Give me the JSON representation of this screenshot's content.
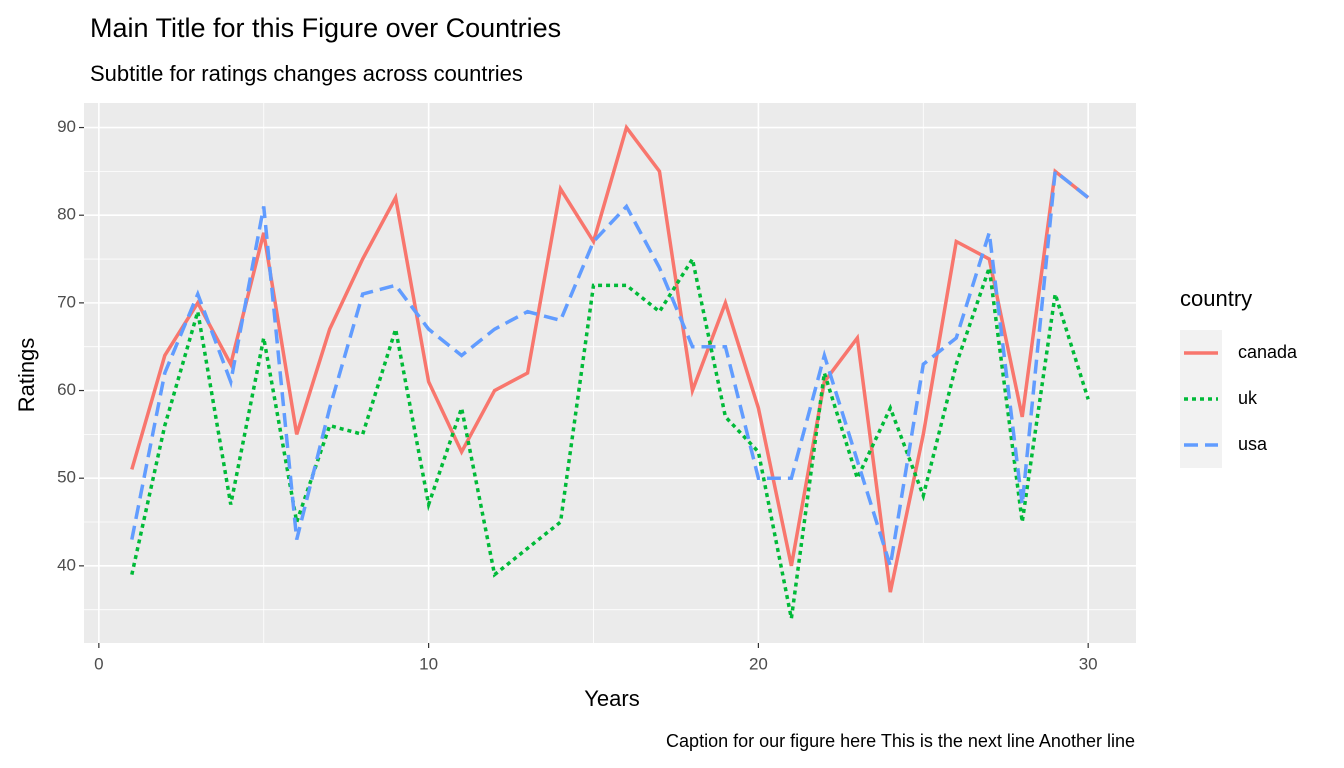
{
  "chart_data": {
    "type": "line",
    "title": "Main Title for this Figure over Countries",
    "subtitle": "Subtitle for ratings changes across countries",
    "caption": "Caption for our figure here This is the next line Another line",
    "x_label": "Years",
    "y_label": "Ratings",
    "legend_title": "country",
    "legend_position": "right",
    "grid": true,
    "x": [
      1,
      2,
      3,
      4,
      5,
      6,
      7,
      8,
      9,
      10,
      11,
      12,
      13,
      14,
      15,
      16,
      17,
      18,
      19,
      20,
      21,
      22,
      23,
      24,
      25,
      26,
      27,
      28,
      29,
      30
    ],
    "series": [
      {
        "name": "canada",
        "color": "#F8766D",
        "dash": "solid",
        "values": [
          51,
          64,
          70,
          63,
          78,
          55,
          67,
          75,
          82,
          61,
          53,
          60,
          62,
          83,
          77,
          90,
          85,
          60,
          70,
          58,
          40,
          61,
          66,
          37,
          55,
          77,
          75,
          57,
          85,
          82
        ]
      },
      {
        "name": "uk",
        "color": "#00BA38",
        "dash": "dotted",
        "values": [
          39,
          56,
          69,
          47,
          66,
          45,
          56,
          55,
          67,
          47,
          58,
          39,
          42,
          45,
          72,
          72,
          69,
          75,
          57,
          53,
          34,
          62,
          50,
          58,
          48,
          63,
          74,
          45,
          71,
          59
        ]
      },
      {
        "name": "usa",
        "color": "#619CFF",
        "dash": "dashed",
        "values": [
          43,
          62,
          71,
          61,
          81,
          43,
          58,
          71,
          72,
          67,
          64,
          67,
          69,
          68,
          77,
          81,
          74,
          65,
          65,
          50,
          50,
          64,
          52,
          40,
          63,
          66,
          78,
          47,
          85,
          82
        ]
      }
    ],
    "xlim": [
      -0.45,
      31.45
    ],
    "xticks": [
      0,
      10,
      20,
      30
    ],
    "ylim": [
      31.2,
      92.8
    ],
    "yticks": [
      40,
      50,
      60,
      70,
      80,
      90
    ]
  }
}
